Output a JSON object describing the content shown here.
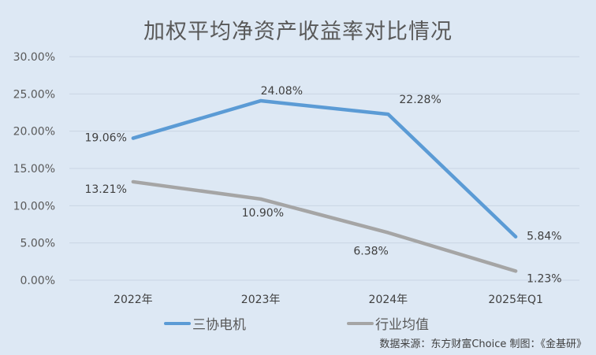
{
  "chart_data": {
    "type": "line",
    "title": "加权平均净资产收益率对比情况",
    "categories": [
      "2022年",
      "2023年",
      "2024年",
      "2025年Q1"
    ],
    "series": [
      {
        "name": "三协电机",
        "values": [
          19.06,
          24.08,
          22.28,
          5.84
        ],
        "labels": [
          "19.06%",
          "24.08%",
          "22.28%",
          "5.84%"
        ],
        "color": "#5b9bd5"
      },
      {
        "name": "行业均值",
        "values": [
          13.21,
          10.9,
          6.38,
          1.23
        ],
        "labels": [
          "13.21%",
          "10.90%",
          "6.38%",
          "1.23%"
        ],
        "color": "#a5a5a5"
      }
    ],
    "yticks": [
      "0.00%",
      "5.00%",
      "10.00%",
      "15.00%",
      "20.00%",
      "25.00%",
      "30.00%"
    ],
    "ylim": [
      0,
      30
    ],
    "xlabel": "",
    "ylabel": "",
    "grid": true,
    "legend_position": "bottom"
  },
  "legend": {
    "s1": "三协电机",
    "s2": "行业均值"
  },
  "source": "数据来源：东方财富Choice   制图：《金基研》"
}
